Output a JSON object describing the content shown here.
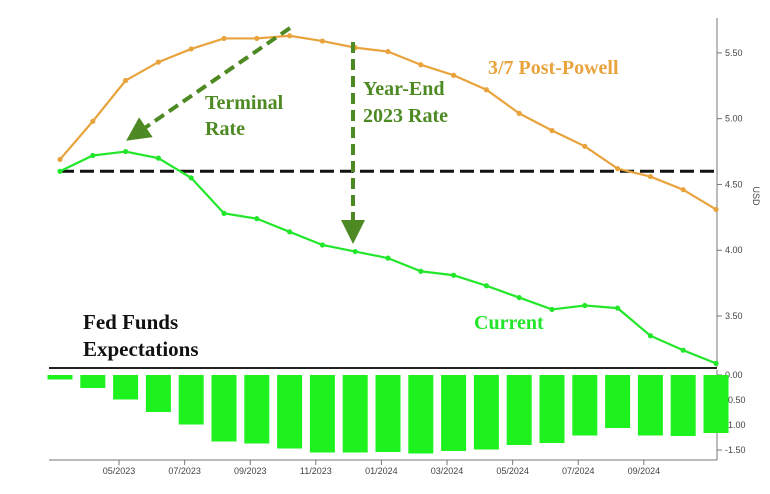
{
  "chart_data": [
    {
      "type": "line",
      "ylabel": "USD",
      "ylim": [
        3.12,
        5.75
      ],
      "y_ticks": [
        "5.50",
        "5.00",
        "4.50",
        "4.00",
        "3.50"
      ],
      "y_tick_values": [
        5.5,
        5.0,
        4.5,
        4.0,
        3.5
      ],
      "series": [
        {
          "name": "3/7 Post-Powell",
          "color": "#E8A33C",
          "values": [
            4.69,
            4.98,
            5.29,
            5.43,
            5.53,
            5.61,
            5.61,
            5.63,
            5.59,
            5.54,
            5.51,
            5.41,
            5.33,
            5.22,
            5.04,
            4.91,
            4.79,
            4.62,
            4.56,
            4.46,
            4.31
          ]
        },
        {
          "name": "Current",
          "color": "#22E62A",
          "values": [
            4.6,
            4.72,
            4.75,
            4.7,
            4.55,
            4.28,
            4.24,
            4.14,
            4.04,
            3.99,
            3.94,
            3.84,
            3.81,
            3.73,
            3.64,
            3.55,
            3.58,
            3.56,
            3.35,
            3.24,
            3.14
          ]
        }
      ],
      "reference_line": 4.6,
      "annotations": {
        "post_powell": "3/7 Post-Powell",
        "terminal_line1": "Terminal",
        "terminal_line2": "Rate",
        "yearend_line1": "Year-End",
        "yearend_line2": "2023 Rate",
        "current": "Current",
        "title_line1": "Fed Funds",
        "title_line2": "Expectations"
      }
    },
    {
      "type": "bar",
      "color": "#1EF21E",
      "ylim": [
        -1.7,
        0.1
      ],
      "y_ticks": [
        "0.00",
        "-0.50",
        "-1.00",
        "-1.50"
      ],
      "y_tick_values": [
        0.0,
        -0.5,
        -1.0,
        -1.5
      ],
      "values": [
        -0.09,
        -0.26,
        -0.49,
        -0.74,
        -0.99,
        -1.33,
        -1.37,
        -1.47,
        -1.55,
        -1.55,
        -1.54,
        -1.57,
        -1.52,
        -1.49,
        -1.4,
        -1.36,
        -1.21,
        -1.06,
        -1.21,
        -1.22,
        -1.16
      ]
    }
  ],
  "x_axis": {
    "ticks": [
      "05/2023",
      "07/2023",
      "09/2023",
      "11/2023",
      "01/2024",
      "03/2024",
      "05/2024",
      "07/2024",
      "09/2024"
    ],
    "tick_index": [
      1.8,
      3.8,
      5.8,
      7.8,
      9.8,
      11.8,
      13.8,
      15.8,
      17.8
    ]
  }
}
